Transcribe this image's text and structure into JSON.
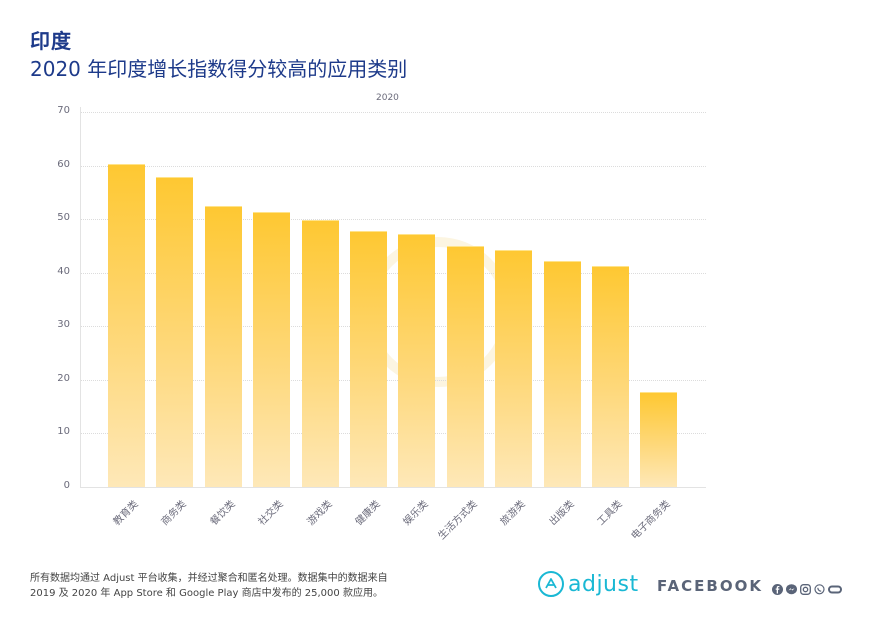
{
  "header": {
    "title": "印度",
    "subtitle": "2020 年印度增长指数得分较高的应用类别"
  },
  "chart_data": {
    "type": "bar",
    "title": "2020 年印度增长指数得分较高的应用类别",
    "legend": [
      "2020"
    ],
    "legend_position": "top",
    "xlabel": "",
    "ylabel": "",
    "ylim": [
      0,
      70
    ],
    "yticks": [
      0,
      10,
      20,
      30,
      40,
      50,
      60,
      70
    ],
    "grid": true,
    "categories": [
      "教育类",
      "商务类",
      "餐饮类",
      "社交类",
      "游戏类",
      "健康类",
      "娱乐类",
      "生活方式类",
      "旅游类",
      "出版类",
      "工具类",
      "电子商务类"
    ],
    "series": [
      {
        "name": "2020",
        "values": [
          60.3,
          57.8,
          52.4,
          51.3,
          49.8,
          47.8,
          47.2,
          45.0,
          44.2,
          42.2,
          41.2,
          17.7
        ]
      }
    ]
  },
  "chart": {
    "legend_label": "2020",
    "yticks": [
      "70",
      "60",
      "50",
      "40",
      "30",
      "20",
      "10",
      "0"
    ],
    "categories": [
      "教育类",
      "商务类",
      "餐饮类",
      "社交类",
      "游戏类",
      "健康类",
      "娱乐类",
      "生活方式类",
      "旅游类",
      "出版类",
      "工具类",
      "电子商务类"
    ]
  },
  "footer": {
    "note_line1": "所有数据均通过 Adjust 平台收集，并经过聚合和匿名处理。数据集中的数据来自",
    "note_line2": "2019 及 2020 年 App Store 和 Google Play 商店中发布的 25,000 款应用。",
    "adjust_label": "adjust",
    "facebook_label": "FACEBOOK",
    "social_icons": [
      "facebook-icon",
      "messenger-icon",
      "instagram-icon",
      "whatsapp-icon",
      "oculus-icon"
    ]
  },
  "colors": {
    "title": "#1d3a8a",
    "bar_top": "#fec832",
    "bar_bottom": "#fee8b8",
    "adjust": "#1ab8d4",
    "facebook": "#5a6478"
  }
}
